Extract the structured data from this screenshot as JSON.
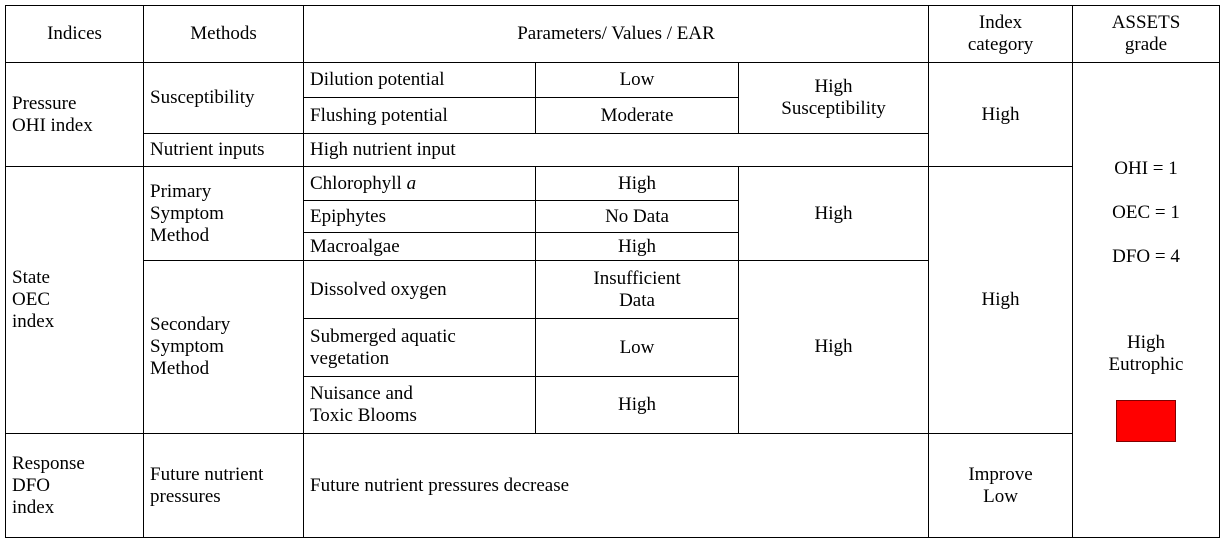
{
  "header": [
    "Indices",
    "Methods",
    "Parameters/ Values / EAR",
    "Index\ncategory",
    "ASSETS\ngrade"
  ],
  "pressure": {
    "index": "Pressure\nOHI index",
    "susceptibility": {
      "method": "Susceptibility",
      "params": [
        [
          "Dilution potential",
          "Low"
        ],
        [
          "Flushing potential",
          "Moderate"
        ]
      ],
      "result": "High\nSusceptibility"
    },
    "nutrient": {
      "method": "Nutrient inputs",
      "value": "High nutrient input"
    },
    "category": "High"
  },
  "state": {
    "index": "State\nOEC\nindex",
    "primary": {
      "method": "Primary\nSymptom\nMethod",
      "params": [
        [
          {
            "text": "Chlorophyll",
            "italic": "a"
          },
          "High"
        ],
        [
          "Epiphytes",
          "No Data"
        ],
        [
          "Macroalgae",
          "High"
        ]
      ],
      "result": "High"
    },
    "secondary": {
      "method": "Secondary\nSymptom\nMethod",
      "params": [
        [
          "Dissolved oxygen",
          "Insufficient\nData"
        ],
        [
          "Submerged aquatic\nvegetation",
          "Low"
        ],
        [
          "Nuisance and\nToxic Blooms",
          "High"
        ]
      ],
      "result": "High"
    },
    "category": "High"
  },
  "response": {
    "index": "Response\nDFO\nindex",
    "method": "Future nutrient\npressures",
    "value": "Future nutrient pressures decrease",
    "category": "Improve\nLow"
  },
  "grade": {
    "lines": [
      "OHI  = 1",
      "OEC = 1",
      "DFO = 4"
    ],
    "status": "High\nEutrophic"
  }
}
